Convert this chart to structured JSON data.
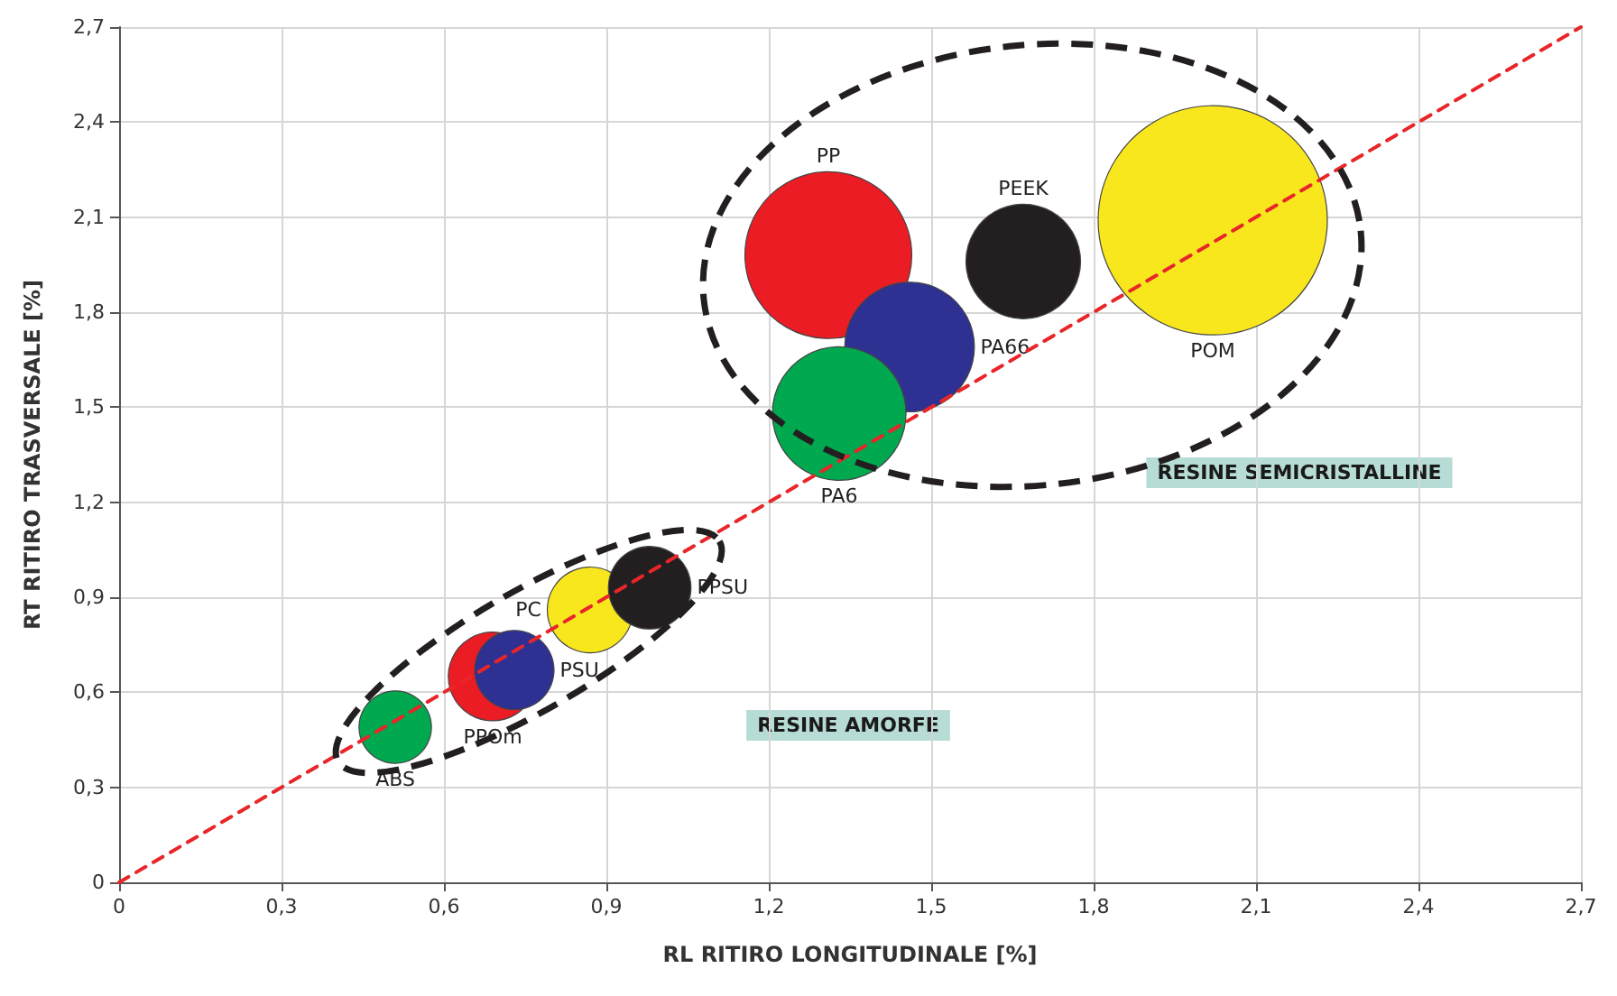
{
  "chart_data": {
    "type": "bubble",
    "xlabel": "RL RITIRO LONGITUDINALE [%]",
    "ylabel": "RT RITIRO TRASVERSALE [%]",
    "xlim": [
      0,
      2.7
    ],
    "ylim": [
      0,
      2.7
    ],
    "xticks": [
      0,
      {
        "value": 0.3,
        "label": "0,3"
      },
      {
        "value": 0.6,
        "label": "0,6"
      },
      {
        "value": 0.9,
        "label": "0,9"
      },
      {
        "value": 1.2,
        "label": "1,2"
      },
      {
        "value": 1.5,
        "label": "1,5"
      },
      {
        "value": 1.8,
        "label": "1,8"
      },
      {
        "value": 2.1,
        "label": "2,1"
      },
      {
        "value": 2.4,
        "label": "2,4"
      },
      {
        "value": 2.7,
        "label": "2,7"
      }
    ],
    "yticks": [
      0,
      {
        "value": 0.3,
        "label": "0,3"
      },
      {
        "value": 0.6,
        "label": "0,6"
      },
      {
        "value": 0.9,
        "label": "0,9"
      },
      {
        "value": 1.2,
        "label": "1,2"
      },
      {
        "value": 1.5,
        "label": "1,5"
      },
      {
        "value": 1.8,
        "label": "1,8"
      },
      {
        "value": 2.1,
        "label": "2,1"
      },
      {
        "value": 2.4,
        "label": "2,4"
      },
      {
        "value": 2.7,
        "label": "2,7"
      }
    ],
    "grid": true,
    "legend": false,
    "series": [
      {
        "name": "ABS",
        "color": "#00a84f",
        "x": [
          0.51
        ],
        "values": [
          0.49
        ],
        "sizes": [
          0.1
        ]
      },
      {
        "name": "PPOm",
        "color": "#ec1c24",
        "x": [
          0.69
        ],
        "values": [
          0.65
        ],
        "sizes": [
          0.15
        ]
      },
      {
        "name": "PSU",
        "color": "#2e3192",
        "x": [
          0.73
        ],
        "values": [
          0.67
        ],
        "sizes": [
          0.12
        ]
      },
      {
        "name": "PC",
        "color": "#f9e71e",
        "x": [
          0.87
        ],
        "values": [
          0.86
        ],
        "sizes": [
          0.14
        ]
      },
      {
        "name": "PPSU",
        "color": "#231f20",
        "x": [
          0.98
        ],
        "values": [
          0.93
        ],
        "sizes": [
          0.13
        ]
      },
      {
        "name": "PP",
        "color": "#ec1c24",
        "x": [
          1.31
        ],
        "values": [
          1.98
        ],
        "sizes": [
          0.53
        ]
      },
      {
        "name": "PA66",
        "color": "#2e3192",
        "x": [
          1.46
        ],
        "values": [
          1.69
        ],
        "sizes": [
          0.32
        ]
      },
      {
        "name": "PA6",
        "color": "#00a84f",
        "x": [
          1.33
        ],
        "values": [
          1.48
        ],
        "sizes": [
          0.34
        ]
      },
      {
        "name": "PEEK",
        "color": "#231f20",
        "x": [
          1.67
        ],
        "values": [
          1.96
        ],
        "sizes": [
          0.25
        ]
      },
      {
        "name": "POM",
        "color": "#f9e71e",
        "x": [
          2.02
        ],
        "values": [
          2.09
        ],
        "sizes": [
          1
        ]
      },
      {
        "type": "line",
        "color": "#e8262a",
        "line_style": "dashed",
        "marker": "none",
        "x": [
          0,
          2.7
        ],
        "values": [
          0,
          2.7
        ]
      }
    ],
    "annotations": [
      "RESINE AMORFE",
      "RESINE SEMICRISTALLINE"
    ]
  }
}
